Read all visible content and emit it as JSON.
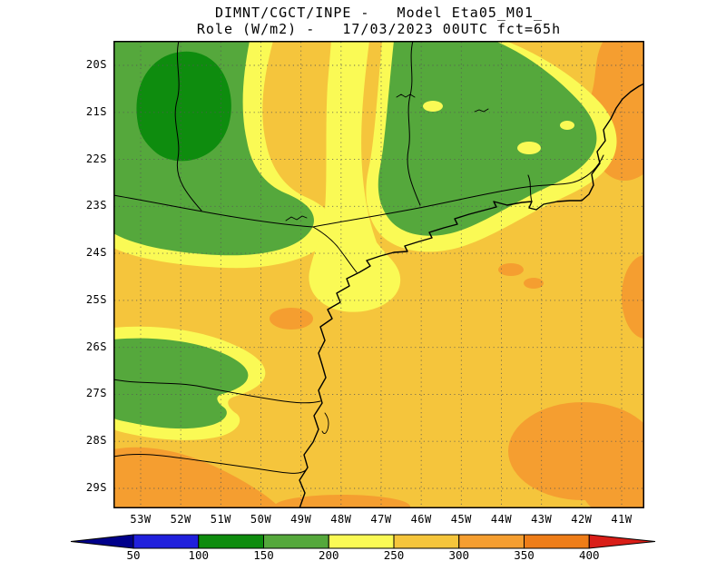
{
  "title": {
    "line1": "DIMNT/CGCT/INPE -   Model Eta05_M01_",
    "line2": "Role (W/m2) -   17/03/2023 00UTC fct=65h"
  },
  "map": {
    "lat_labels": [
      "20S",
      "21S",
      "22S",
      "23S",
      "24S",
      "25S",
      "26S",
      "27S",
      "28S",
      "29S"
    ],
    "lon_labels": [
      "53W",
      "52W",
      "51W",
      "50W",
      "49W",
      "48W",
      "47W",
      "46W",
      "45W",
      "44W",
      "43W",
      "42W",
      "41W"
    ]
  },
  "colorbar": {
    "values": [
      "50",
      "100",
      "150",
      "200",
      "250",
      "300",
      "350",
      "400"
    ],
    "arrow_left_color": "#00008b",
    "arrow_right_color": "#d91e18",
    "segment_colors": [
      "#2020dc",
      "#0e8c0e",
      "#55a83c",
      "#fafa55",
      "#f5c53c",
      "#f59e30",
      "#ee7d18"
    ]
  },
  "chart_data": {
    "type": "heatmap",
    "title": "DIMNT/CGCT/INPE - Model Eta05_M01_",
    "subtitle": "Role (W/m2) - 17/03/2023 00UTC fct=65h",
    "variable": "Role",
    "units": "W/m2",
    "model": "Eta05_M01_",
    "valid": "17/03/2023 00UTC",
    "forecast": "fct=65h",
    "x": {
      "label": "longitude",
      "ticks": [
        "53W",
        "52W",
        "51W",
        "50W",
        "49W",
        "48W",
        "47W",
        "46W",
        "45W",
        "44W",
        "43W",
        "42W",
        "41W"
      ]
    },
    "y": {
      "label": "latitude",
      "ticks": [
        "20S",
        "21S",
        "22S",
        "23S",
        "24S",
        "25S",
        "26S",
        "27S",
        "28S",
        "29S"
      ]
    },
    "scale": {
      "values": [
        50,
        100,
        150,
        200,
        250,
        300,
        350,
        400
      ],
      "colors": [
        "#00008b",
        "#2020dc",
        "#0e8c0e",
        "#55a83c",
        "#fafa55",
        "#f5c53c",
        "#f59e30",
        "#ee7d18",
        "#d91e18"
      ]
    },
    "field_regions": [
      {
        "region": "most of domain including ocean",
        "value_wm2": "250-300"
      },
      {
        "region": "northwest interior (~53-50W, 20-22S)",
        "value_wm2": "150-200"
      },
      {
        "region": "dark core near 52W 21S",
        "value_wm2": "100-150"
      },
      {
        "region": "belt from ~47W 21S to 43W 23S along southeast interior",
        "value_wm2": "150-200"
      },
      {
        "region": "west-central patch (~53-50W, 27-28S)",
        "value_wm2": "150-200"
      },
      {
        "region": "transition fringes around all green areas",
        "value_wm2": "200-250"
      },
      {
        "region": "southwest corner, southeast ocean blob, northeast edge patches",
        "value_wm2": "300-350"
      }
    ]
  }
}
